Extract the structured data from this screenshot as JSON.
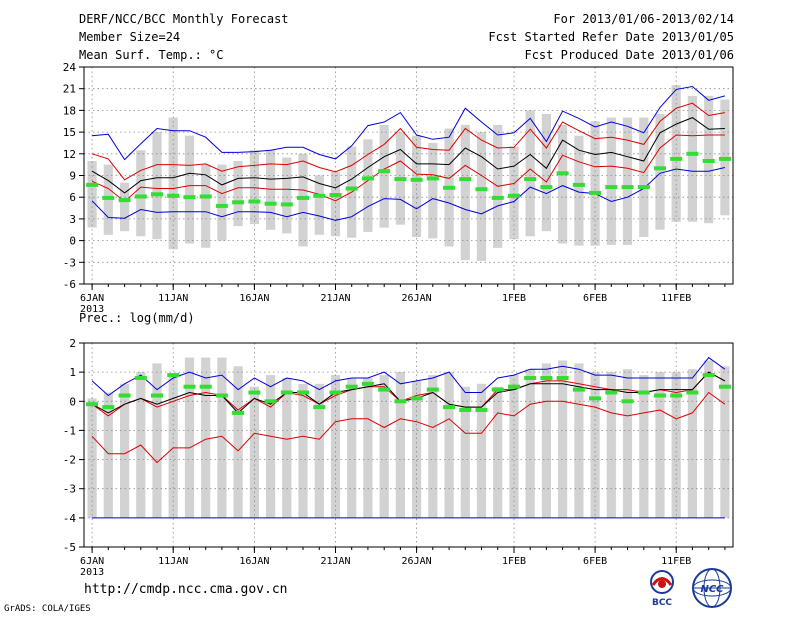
{
  "header": {
    "title": "DERF/NCC/BCC Monthly Forecast",
    "member_size": "Member Size=24",
    "variable": "Mean Surf. Temp.: °C",
    "period": "For 2013/01/06-2013/02/14",
    "started": "Fcst Started Refer Date 2013/01/05",
    "produced": "Fcst Produced Date 2013/01/06"
  },
  "footer": {
    "url": "http://cmdp.ncc.cma.gov.cn",
    "grads": "GrADS: COLA/IGES",
    "logo_bcc": "BCC",
    "logo_ncc": "NCC"
  },
  "colors": {
    "bar": "#d2d2d2",
    "ensemble_max": "#0000dd",
    "ensemble_min": "#0000dd",
    "spread_upper": "#dd0000",
    "spread_lower": "#dd0000",
    "ensemble_mean": "#000000",
    "climatology": "#33dd33"
  },
  "chart_data": [
    {
      "type": "line",
      "title": "Mean Surf. Temp.: °C",
      "xlabel": "",
      "ylabel": "°C",
      "ylim": [
        -6,
        24
      ],
      "yticks": [
        -6,
        -3,
        0,
        3,
        6,
        9,
        12,
        15,
        18,
        21,
        24
      ],
      "x_tick_labels": [
        {
          "day": 0,
          "label": "6JAN",
          "year": "2013"
        },
        {
          "day": 5,
          "label": "11JAN"
        },
        {
          "day": 10,
          "label": "16JAN"
        },
        {
          "day": 15,
          "label": "21JAN"
        },
        {
          "day": 20,
          "label": "26JAN"
        },
        {
          "day": 26,
          "label": "1FEB"
        },
        {
          "day": 31,
          "label": "6FEB"
        },
        {
          "day": 36,
          "label": "11FEB"
        }
      ],
      "days": 40,
      "bars": {
        "name": "Observed range",
        "low": [
          1.8,
          0.8,
          1.3,
          0.6,
          0.2,
          -1.2,
          -0.4,
          -1.0,
          0.0,
          2.0,
          2.3,
          1.5,
          1.0,
          -0.8,
          0.8,
          0.6,
          0.4,
          1.2,
          1.8,
          2.2,
          0.5,
          0.3,
          -0.8,
          -2.7,
          -2.8,
          -1.0,
          0.2,
          0.6,
          1.3,
          -0.4,
          -0.7,
          -0.7,
          -0.6,
          -0.6,
          0.5,
          1.5,
          2.6,
          2.6,
          2.4,
          3.5
        ],
        "high": [
          11.0,
          10.5,
          8.0,
          12.5,
          15.0,
          17.0,
          14.5,
          10.5,
          10.5,
          11.0,
          12.5,
          12.5,
          11.5,
          12.0,
          9.0,
          9.5,
          13.0,
          14.0,
          16.0,
          15.0,
          14.5,
          13.5,
          15.5,
          16.0,
          15.0,
          16.0,
          13.0,
          18.0,
          17.5,
          16.0,
          14.5,
          16.5,
          17.0,
          17.0,
          17.0,
          17.5,
          21.5,
          20.0,
          20.0,
          19.5
        ]
      },
      "series": [
        {
          "name": "Ensemble max",
          "values": [
            14.5,
            14.7,
            11.2,
            13.4,
            15.5,
            15.2,
            15.2,
            14.3,
            12.2,
            12.2,
            12.3,
            12.5,
            12.9,
            12.9,
            11.9,
            11.3,
            13.1,
            15.9,
            16.4,
            17.7,
            14.6,
            14.0,
            14.3,
            18.3,
            16.4,
            14.6,
            14.9,
            16.9,
            13.7,
            17.9,
            16.9,
            15.7,
            16.4,
            15.8,
            14.9,
            18.4,
            20.9,
            21.3,
            19.4,
            20.0
          ]
        },
        {
          "name": "Spread upper",
          "values": [
            12.0,
            11.3,
            8.4,
            9.7,
            10.5,
            10.5,
            10.4,
            10.6,
            9.6,
            10.2,
            10.4,
            10.6,
            10.5,
            11.0,
            10.1,
            9.5,
            10.4,
            11.9,
            13.3,
            15.5,
            12.9,
            12.6,
            12.5,
            15.5,
            13.9,
            12.8,
            12.9,
            15.4,
            12.8,
            16.4,
            15.2,
            14.1,
            14.3,
            13.9,
            13.3,
            16.5,
            18.3,
            19.0,
            17.3,
            17.7
          ]
        },
        {
          "name": "Ensemble mean",
          "values": [
            9.6,
            8.3,
            6.6,
            8.3,
            8.7,
            8.7,
            9.3,
            9.1,
            7.7,
            8.6,
            8.7,
            8.5,
            8.6,
            8.8,
            7.9,
            7.3,
            8.5,
            10.1,
            11.6,
            12.6,
            10.6,
            10.6,
            10.5,
            12.8,
            11.6,
            9.9,
            10.3,
            11.9,
            10.0,
            13.9,
            12.5,
            11.9,
            12.2,
            11.6,
            11.0,
            14.9,
            16.1,
            17.0,
            15.4,
            15.5
          ]
        },
        {
          "name": "Spread lower",
          "values": [
            8.2,
            7.2,
            5.4,
            7.4,
            7.2,
            7.2,
            7.6,
            7.6,
            6.5,
            7.3,
            7.3,
            7.1,
            7.1,
            7.0,
            6.4,
            5.5,
            6.7,
            8.3,
            9.9,
            11.0,
            9.2,
            9.1,
            8.6,
            10.4,
            9.0,
            7.5,
            7.9,
            9.9,
            8.1,
            11.8,
            10.9,
            10.2,
            10.3,
            10.0,
            9.4,
            12.8,
            14.6,
            14.5,
            14.6,
            14.6
          ]
        },
        {
          "name": "Ensemble min",
          "values": [
            5.5,
            3.2,
            3.1,
            4.3,
            3.9,
            4.0,
            4.0,
            4.0,
            3.3,
            4.0,
            4.0,
            3.9,
            3.3,
            3.9,
            3.4,
            2.8,
            3.3,
            4.7,
            5.8,
            5.7,
            4.4,
            5.8,
            5.2,
            4.3,
            3.7,
            4.8,
            5.4,
            7.4,
            6.5,
            7.6,
            6.7,
            6.5,
            5.4,
            6.0,
            7.2,
            9.3,
            9.9,
            9.6,
            9.6,
            10.1
          ]
        },
        {
          "name": "Climatology",
          "values": [
            7.7,
            5.9,
            5.6,
            6.1,
            6.4,
            6.2,
            6.0,
            6.1,
            4.8,
            5.3,
            5.4,
            5.1,
            5.0,
            5.9,
            6.2,
            6.3,
            7.2,
            8.6,
            9.6,
            8.5,
            8.4,
            8.6,
            7.3,
            8.5,
            7.1,
            5.9,
            6.2,
            8.5,
            7.4,
            9.3,
            7.7,
            6.6,
            7.4,
            7.4,
            7.4,
            10.0,
            11.3,
            12.0,
            11.0,
            11.3
          ]
        }
      ]
    },
    {
      "type": "line",
      "title": "Prec.: log(mm/d)",
      "xlabel": "",
      "ylabel": "log(mm/d)",
      "ylim": [
        -5,
        2
      ],
      "yticks": [
        -5,
        -4,
        -3,
        -2,
        -1,
        0,
        1,
        2
      ],
      "x_tick_labels": [
        {
          "day": 0,
          "label": "6JAN",
          "year": "2013"
        },
        {
          "day": 5,
          "label": "11JAN"
        },
        {
          "day": 10,
          "label": "16JAN"
        },
        {
          "day": 15,
          "label": "21JAN"
        },
        {
          "day": 20,
          "label": "26JAN"
        },
        {
          "day": 26,
          "label": "1FEB"
        },
        {
          "day": 31,
          "label": "6FEB"
        },
        {
          "day": 36,
          "label": "11FEB"
        }
      ],
      "days": 40,
      "bars": {
        "name": "Observed range",
        "low": -4.0,
        "high": [
          0.1,
          0.3,
          0.6,
          1.0,
          1.3,
          0.9,
          1.5,
          1.5,
          1.5,
          1.2,
          0.5,
          0.9,
          0.8,
          0.6,
          0.6,
          0.9,
          0.8,
          0.8,
          0.9,
          1.0,
          0.7,
          0.9,
          1.0,
          0.5,
          0.6,
          0.5,
          0.9,
          1.1,
          1.3,
          1.4,
          1.3,
          1.0,
          1.0,
          1.1,
          0.9,
          1.0,
          1.0,
          1.1,
          1.4,
          1.2
        ]
      },
      "series": [
        {
          "name": "Ensemble max",
          "values": [
            0.7,
            0.2,
            0.6,
            0.9,
            0.4,
            0.8,
            1.0,
            0.8,
            0.9,
            0.4,
            0.8,
            0.5,
            0.8,
            0.7,
            0.4,
            0.7,
            0.8,
            0.8,
            1.0,
            0.6,
            0.7,
            0.8,
            1.0,
            0.3,
            0.3,
            0.8,
            0.9,
            1.1,
            1.1,
            1.2,
            1.1,
            0.9,
            0.9,
            0.8,
            0.8,
            0.8,
            0.8,
            0.8,
            1.5,
            1.1
          ]
        },
        {
          "name": "Spread upper",
          "values": [
            -0.1,
            -0.5,
            -0.1,
            0.1,
            -0.2,
            0.0,
            0.2,
            0.3,
            0.2,
            -0.3,
            0.1,
            -0.2,
            0.3,
            0.2,
            -0.1,
            0.2,
            0.4,
            0.5,
            0.5,
            0.0,
            0.2,
            0.3,
            -0.1,
            -0.2,
            -0.2,
            0.4,
            0.4,
            0.6,
            0.7,
            0.7,
            0.6,
            0.5,
            0.4,
            0.4,
            0.3,
            0.4,
            0.3,
            0.4,
            1.0,
            0.7
          ]
        },
        {
          "name": "Ensemble mean",
          "values": [
            -0.1,
            -0.4,
            -0.1,
            0.1,
            -0.1,
            0.1,
            0.3,
            0.2,
            0.2,
            -0.4,
            0.1,
            -0.1,
            0.3,
            0.3,
            -0.1,
            0.3,
            0.4,
            0.5,
            0.6,
            0.0,
            0.1,
            0.3,
            -0.1,
            -0.2,
            -0.2,
            0.3,
            0.4,
            0.6,
            0.6,
            0.6,
            0.5,
            0.4,
            0.4,
            0.3,
            0.3,
            0.4,
            0.4,
            0.4,
            1.0,
            0.7
          ]
        },
        {
          "name": "Spread lower",
          "values": [
            -1.2,
            -1.8,
            -1.8,
            -1.5,
            -2.1,
            -1.6,
            -1.6,
            -1.3,
            -1.2,
            -1.7,
            -1.1,
            -1.2,
            -1.3,
            -1.2,
            -1.3,
            -0.7,
            -0.6,
            -0.6,
            -0.9,
            -0.6,
            -0.7,
            -0.9,
            -0.6,
            -1.1,
            -1.1,
            -0.4,
            -0.5,
            -0.1,
            0.0,
            0.0,
            -0.1,
            -0.2,
            -0.4,
            -0.5,
            -0.4,
            -0.3,
            -0.6,
            -0.4,
            0.3,
            -0.1
          ]
        },
        {
          "name": "Ensemble min",
          "values": [
            -4.0,
            -4.0,
            -4.0,
            -4.0,
            -4.0,
            -4.0,
            -4.0,
            -4.0,
            -4.0,
            -4.0,
            -4.0,
            -4.0,
            -4.0,
            -4.0,
            -4.0,
            -4.0,
            -4.0,
            -4.0,
            -4.0,
            -4.0,
            -4.0,
            -4.0,
            -4.0,
            -4.0,
            -4.0,
            -4.0,
            -4.0,
            -4.0,
            -4.0,
            -4.0,
            -4.0,
            -4.0,
            -4.0,
            -4.0,
            -4.0,
            -4.0,
            -4.0,
            -4.0,
            -4.0,
            -4.0
          ]
        },
        {
          "name": "Climatology",
          "values": [
            -0.1,
            -0.2,
            0.2,
            0.8,
            0.2,
            0.9,
            0.5,
            0.5,
            0.2,
            -0.4,
            0.3,
            0.0,
            0.3,
            0.3,
            -0.2,
            0.3,
            0.5,
            0.6,
            0.4,
            0.0,
            0.1,
            0.4,
            -0.2,
            -0.3,
            -0.3,
            0.4,
            0.5,
            0.8,
            0.8,
            0.8,
            0.4,
            0.1,
            0.3,
            0.0,
            0.3,
            0.2,
            0.2,
            0.3,
            0.9,
            0.5
          ]
        }
      ]
    }
  ]
}
